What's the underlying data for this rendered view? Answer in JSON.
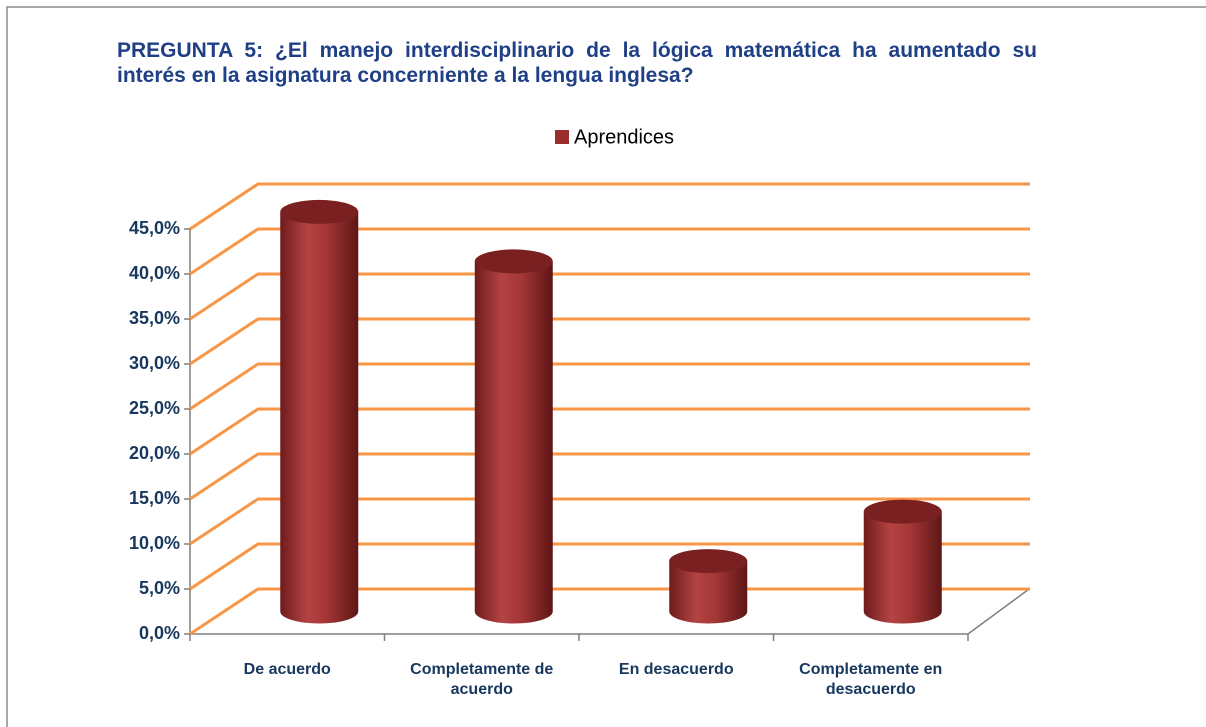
{
  "chart_data": {
    "type": "bar3d",
    "title": "PREGUNTA 5: ¿El manejo interdisciplinario de la lógica matemática ha aumentado su interés en la asignatura concerniente a la lengua inglesa?",
    "categories": [
      "De acuerdo",
      "Completamente de acuerdo",
      "En desacuerdo",
      "Completamente en desacuerdo"
    ],
    "series": [
      {
        "name": "Aprendices",
        "color": "#9b2d2d",
        "values": [
          44.4,
          38.9,
          5.6,
          11.1
        ]
      }
    ],
    "ylim": [
      0,
      45
    ],
    "yticks": [
      {
        "value": 0,
        "label": "0,0%"
      },
      {
        "value": 5,
        "label": "5,0%"
      },
      {
        "value": 10,
        "label": "10,0%"
      },
      {
        "value": 15,
        "label": "15,0%"
      },
      {
        "value": 20,
        "label": "20,0%"
      },
      {
        "value": 25,
        "label": "25,0%"
      },
      {
        "value": 30,
        "label": "30,0%"
      },
      {
        "value": 35,
        "label": "35,0%"
      },
      {
        "value": 40,
        "label": "40,0%"
      },
      {
        "value": 45,
        "label": "45,0%"
      }
    ],
    "grid": true,
    "grid_color": "#f79646",
    "legend": "top"
  }
}
